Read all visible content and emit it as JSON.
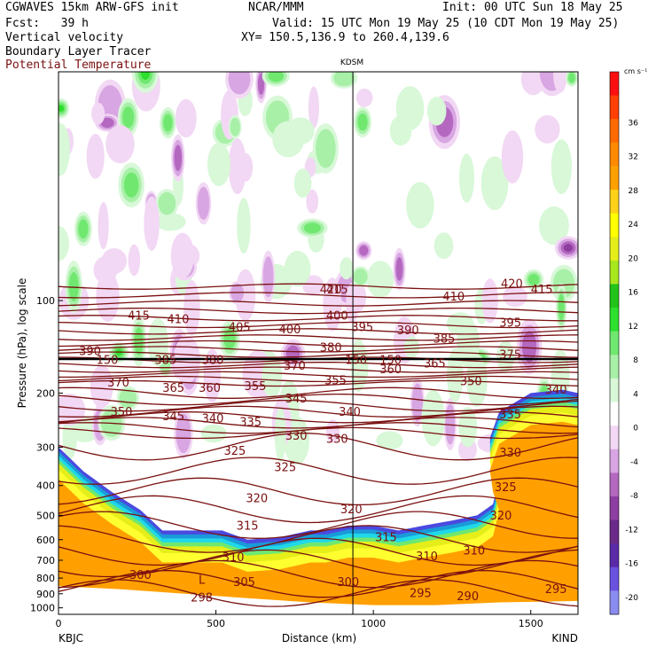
{
  "header": {
    "model_line": "CGWAVES 15km ARW-GFS init",
    "fcst_line": "Fcst:   39 h",
    "field1": "Vertical velocity",
    "field2": "Boundary Layer Tracer",
    "field3": "Potential Temperature",
    "center": "NCAR/MMM",
    "init_line": "Init: 00 UTC Sun 18 May 25",
    "valid_line": "Valid: 15 UTC Mon 19 May 25 (10 CDT Mon 19 May 25)",
    "xy_line": "XY= 150.5,136.9 to 260.4,139.6",
    "station_mid": "KDSM",
    "station_left": "KBJC",
    "station_right": "KIND"
  },
  "chart_data": {
    "type": "heatmap",
    "title": "",
    "xlabel": "Distance (km)",
    "ylabel": "Pressure (hPa), log scale",
    "xlim": [
      0,
      1650
    ],
    "ylim": [
      1050,
      18
    ],
    "x_ticks": [
      0,
      500,
      1000,
      1500
    ],
    "y_ticks": [
      100,
      200,
      300,
      400,
      500,
      600,
      700,
      800,
      900,
      1000
    ],
    "y_scale": "log",
    "vertical_marker_km": 935,
    "colorbar": {
      "units": "cm s⁻¹",
      "levels": [
        -20,
        -16,
        -12,
        -8,
        -4,
        0,
        4,
        8,
        12,
        16,
        20,
        24,
        28,
        32,
        36
      ],
      "colors": [
        "#8a8cf0",
        "#6a52e0",
        "#5a2aa8",
        "#6b2a8a",
        "#8e3ea0",
        "#b468c0",
        "#d8a6e2",
        "#f2d8f4",
        "#ffffff",
        "#d8f8d8",
        "#a8f0a8",
        "#70e870",
        "#2ee02e",
        "#22c41a",
        "#a8e61e",
        "#e6ee1a",
        "#ffff00",
        "#ffd21a",
        "#ffa000",
        "#ff8a00",
        "#ff6a00",
        "#ff4000",
        "#ff1010"
      ]
    },
    "theta_labels": [
      {
        "label": "420",
        "x": 865,
        "p": 92
      },
      {
        "label": "415",
        "x": 885,
        "p": 92
      },
      {
        "label": "410",
        "x": 1255,
        "p": 97
      },
      {
        "label": "420",
        "x": 1440,
        "p": 88
      },
      {
        "label": "415",
        "x": 1535,
        "p": 92
      },
      {
        "label": "415",
        "x": 255,
        "p": 112
      },
      {
        "label": "410",
        "x": 380,
        "p": 115
      },
      {
        "label": "405",
        "x": 575,
        "p": 122
      },
      {
        "label": "400",
        "x": 735,
        "p": 124
      },
      {
        "label": "400",
        "x": 885,
        "p": 112
      },
      {
        "label": "395",
        "x": 965,
        "p": 122
      },
      {
        "label": "390",
        "x": 1110,
        "p": 125
      },
      {
        "label": "385",
        "x": 1225,
        "p": 133
      },
      {
        "label": "395",
        "x": 1435,
        "p": 118
      },
      {
        "label": "390",
        "x": 100,
        "p": 146
      },
      {
        "label": "385",
        "x": 340,
        "p": 156
      },
      {
        "label": "380",
        "x": 490,
        "p": 156
      },
      {
        "label": "380",
        "x": 865,
        "p": 142
      },
      {
        "label": "375",
        "x": 1435,
        "p": 150
      },
      {
        "label": "370",
        "x": 750,
        "p": 163
      },
      {
        "label": "360",
        "x": 1055,
        "p": 167
      },
      {
        "label": "365",
        "x": 1195,
        "p": 160
      },
      {
        "label": "350",
        "x": 1310,
        "p": 183
      },
      {
        "label": "370",
        "x": 190,
        "p": 185
      },
      {
        "label": "365",
        "x": 365,
        "p": 192
      },
      {
        "label": "360",
        "x": 480,
        "p": 192
      },
      {
        "label": "355",
        "x": 625,
        "p": 190
      },
      {
        "label": "355",
        "x": 880,
        "p": 182
      },
      {
        "label": "345",
        "x": 755,
        "p": 208
      },
      {
        "label": "340",
        "x": 1580,
        "p": 195
      },
      {
        "label": "350",
        "x": 200,
        "p": 230
      },
      {
        "label": "345",
        "x": 365,
        "p": 238
      },
      {
        "label": "340",
        "x": 490,
        "p": 242
      },
      {
        "label": "335",
        "x": 610,
        "p": 248
      },
      {
        "label": "340",
        "x": 925,
        "p": 230
      },
      {
        "label": "335",
        "x": 1435,
        "p": 235
      },
      {
        "label": "330",
        "x": 755,
        "p": 275
      },
      {
        "label": "330",
        "x": 885,
        "p": 282
      },
      {
        "label": "325",
        "x": 560,
        "p": 308
      },
      {
        "label": "325",
        "x": 720,
        "p": 348
      },
      {
        "label": "330",
        "x": 1435,
        "p": 312
      },
      {
        "label": "325",
        "x": 1420,
        "p": 405
      },
      {
        "label": "320",
        "x": 630,
        "p": 440
      },
      {
        "label": "320",
        "x": 930,
        "p": 478
      },
      {
        "label": "320",
        "x": 1405,
        "p": 500
      },
      {
        "label": "315",
        "x": 600,
        "p": 540
      },
      {
        "label": "315",
        "x": 1040,
        "p": 590
      },
      {
        "label": "310",
        "x": 555,
        "p": 685
      },
      {
        "label": "310",
        "x": 1170,
        "p": 680
      },
      {
        "label": "310",
        "x": 1320,
        "p": 650
      },
      {
        "label": "300",
        "x": 260,
        "p": 780
      },
      {
        "label": "305",
        "x": 590,
        "p": 825
      },
      {
        "label": "300",
        "x": 920,
        "p": 825
      },
      {
        "label": "295",
        "x": 1150,
        "p": 895
      },
      {
        "label": "290",
        "x": 1300,
        "p": 915
      },
      {
        "label": "295",
        "x": 1580,
        "p": 870
      },
      {
        "label": "298",
        "x": 455,
        "p": 925
      },
      {
        "label": "L",
        "x": 455,
        "p": 810
      },
      {
        "label": "150",
        "x": 155,
        "p": 156
      },
      {
        "label": "150",
        "x": 945,
        "p": 156
      },
      {
        "label": "150",
        "x": 1055,
        "p": 156
      }
    ]
  }
}
